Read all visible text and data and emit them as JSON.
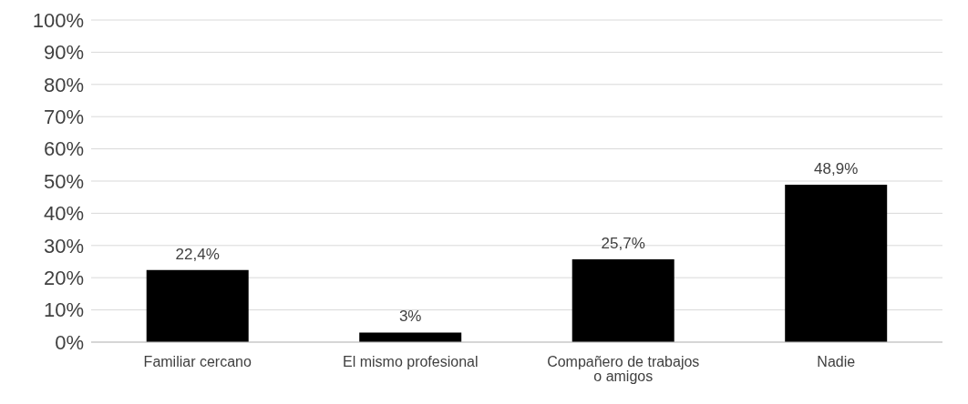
{
  "chart_data": {
    "type": "bar",
    "categories": [
      "Familiar cercano",
      "El mismo profesional",
      "Compañero de trabajos o amigos",
      "Nadie"
    ],
    "values": [
      22.4,
      3,
      25.7,
      48.9
    ],
    "value_labels": [
      "22,4%",
      "3%",
      "25,7%",
      "48,9%"
    ],
    "color": "#000000",
    "ylim": [
      0,
      100
    ],
    "yticks": [
      {
        "value": 0,
        "label": "0%"
      },
      {
        "value": 10,
        "label": "10%"
      },
      {
        "value": 20,
        "label": "20%"
      },
      {
        "value": 30,
        "label": "30%"
      },
      {
        "value": 40,
        "label": "40%"
      },
      {
        "value": 50,
        "label": "50%"
      },
      {
        "value": 60,
        "label": "60%"
      },
      {
        "value": 70,
        "label": "70%"
      },
      {
        "value": 80,
        "label": "80%"
      },
      {
        "value": 90,
        "label": "90%"
      },
      {
        "value": 100,
        "label": "100%"
      }
    ],
    "grid": "y"
  }
}
